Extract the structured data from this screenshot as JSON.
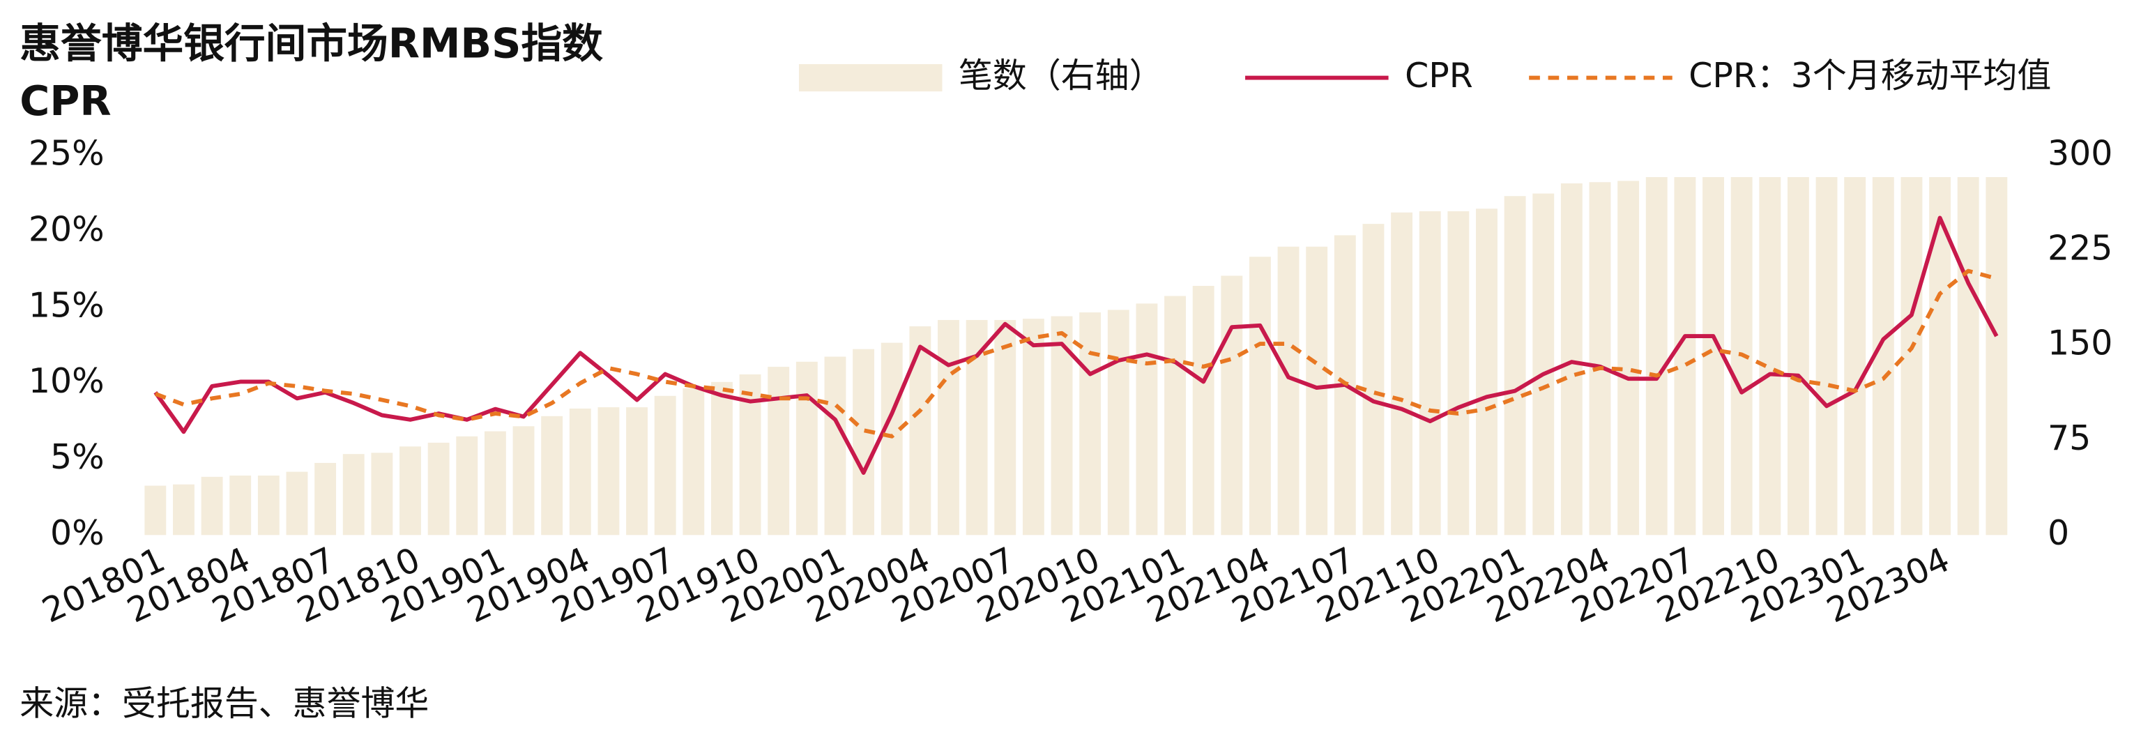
{
  "chart_data": {
    "type": "combo",
    "title": "惠誉博华银行间市场RMBS指数",
    "subtitle": "CPR",
    "source": "来源：受托报告、惠誉博华",
    "legend": "top",
    "grid": false,
    "categories": [
      "201801",
      null,
      null,
      "201804",
      null,
      null,
      "201807",
      null,
      null,
      "201810",
      null,
      null,
      "201901",
      null,
      null,
      "201904",
      null,
      null,
      "201907",
      null,
      null,
      "201910",
      null,
      null,
      "202001",
      null,
      null,
      "202004",
      null,
      null,
      "202007",
      null,
      null,
      "202010",
      null,
      null,
      "202101",
      null,
      null,
      "202104",
      null,
      null,
      "202107",
      null,
      null,
      "202110",
      null,
      null,
      "202201",
      null,
      null,
      "202204",
      null,
      null,
      "202207",
      null,
      null,
      "202210",
      null,
      null,
      "202301",
      null,
      null,
      "202304",
      null,
      null
    ],
    "ylim": [
      0,
      25
    ],
    "yticks": [
      {
        "value": 0,
        "label": "0%"
      },
      {
        "value": 5,
        "label": "5%"
      },
      {
        "value": 10,
        "label": "10%"
      },
      {
        "value": 15,
        "label": "15%"
      },
      {
        "value": 20,
        "label": "20%"
      },
      {
        "value": 25,
        "label": "25%"
      }
    ],
    "y2lim": [
      0,
      300
    ],
    "y2ticks": [
      0,
      75,
      150,
      225,
      300
    ],
    "series": [
      {
        "name": "笔数（右轴）",
        "type": "bar",
        "axis": "y2",
        "color": "#f4ecdb",
        "values": [
          39,
          40,
          46,
          47,
          47,
          50,
          57,
          64,
          65,
          70,
          73,
          78,
          82,
          86,
          94,
          100,
          101,
          101,
          110,
          116,
          121,
          127,
          133,
          137,
          141,
          147,
          152,
          165,
          170,
          170,
          170,
          171,
          173,
          176,
          178,
          183,
          189,
          197,
          205,
          220,
          228,
          228,
          237,
          246,
          255,
          256,
          256,
          258,
          268,
          270,
          278,
          279,
          280,
          283,
          283,
          283,
          283,
          283,
          283,
          283,
          283,
          283,
          283,
          283,
          283,
          283
        ]
      },
      {
        "name": "CPR",
        "type": "line",
        "color": "#c8194b",
        "values": [
          9.4,
          6.8,
          9.8,
          10.1,
          10.1,
          9.0,
          9.4,
          8.7,
          7.9,
          7.6,
          8.0,
          7.6,
          8.3,
          7.8,
          9.9,
          12.0,
          10.5,
          8.9,
          10.6,
          9.8,
          9.2,
          8.8,
          9.0,
          9.2,
          7.6,
          4.1,
          8.0,
          12.4,
          11.2,
          11.8,
          13.9,
          12.5,
          12.6,
          10.6,
          11.5,
          11.9,
          11.4,
          10.1,
          13.7,
          13.8,
          10.4,
          9.7,
          9.9,
          8.8,
          8.3,
          7.5,
          8.4,
          9.1,
          9.5,
          10.6,
          11.4,
          11.1,
          10.3,
          10.3,
          13.1,
          13.1,
          9.4,
          10.6,
          10.5,
          8.5,
          9.5,
          12.9,
          14.5,
          20.9,
          16.6,
          13.1
        ]
      },
      {
        "name": "CPR：3个月移动平均值",
        "type": "line",
        "dash": true,
        "color": "#e87722",
        "values": [
          9.3,
          8.6,
          9.0,
          9.3,
          10.0,
          9.8,
          9.5,
          9.3,
          8.9,
          8.5,
          7.9,
          7.6,
          8.0,
          7.8,
          8.7,
          10.0,
          11.0,
          10.6,
          10.1,
          9.8,
          9.6,
          9.3,
          9.0,
          9.0,
          8.6,
          6.9,
          6.5,
          8.2,
          10.5,
          11.8,
          12.4,
          13.0,
          13.3,
          12.0,
          11.6,
          11.3,
          11.5,
          11.1,
          11.6,
          12.6,
          12.6,
          11.3,
          10.0,
          9.4,
          8.9,
          8.2,
          8.0,
          8.3,
          9.0,
          9.7,
          10.5,
          11.0,
          10.9,
          10.5,
          11.2,
          12.2,
          11.9,
          11.0,
          10.2,
          9.9,
          9.5,
          10.3,
          12.3,
          15.9,
          17.4,
          16.9
        ]
      }
    ]
  }
}
